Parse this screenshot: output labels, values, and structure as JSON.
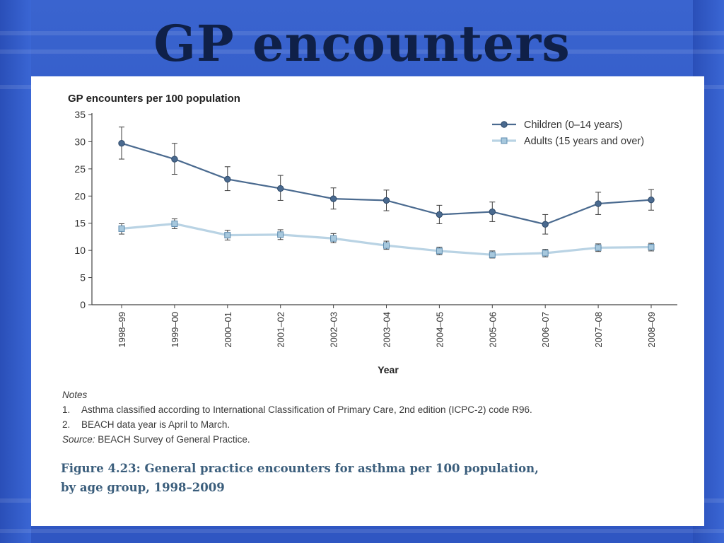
{
  "slide": {
    "title": "GP encounters"
  },
  "chart_data": {
    "type": "line",
    "title": "GP encounters per 100 population",
    "xlabel": "Year",
    "ylabel": "",
    "ylim": [
      0,
      35
    ],
    "yticks": [
      0,
      5,
      10,
      15,
      20,
      25,
      30,
      35
    ],
    "categories": [
      "1998–99",
      "1999–00",
      "2000–01",
      "2001–02",
      "2002–03",
      "2003–04",
      "2004–05",
      "2005–06",
      "2006–07",
      "2007–08",
      "2008–09"
    ],
    "legend_position": "top-right",
    "grid": false,
    "series": [
      {
        "name": "Children (0–14 years)",
        "color": "#4a6a8f",
        "marker": "circle",
        "values": [
          29.7,
          26.8,
          23.1,
          21.4,
          19.5,
          19.2,
          16.6,
          17.1,
          14.8,
          18.6,
          19.3
        ],
        "error_low": [
          26.8,
          24.0,
          21.0,
          19.2,
          17.6,
          17.3,
          14.9,
          15.3,
          13.0,
          16.6,
          17.4
        ],
        "error_high": [
          32.7,
          29.7,
          25.4,
          23.8,
          21.5,
          21.1,
          18.3,
          18.9,
          16.6,
          20.7,
          21.2
        ]
      },
      {
        "name": "Adults (15 years and over)",
        "color": "#b9d3e4",
        "marker": "square",
        "marker_fill": "#a7c8dd",
        "values": [
          14.0,
          14.9,
          12.8,
          12.9,
          12.2,
          10.9,
          9.9,
          9.2,
          9.5,
          10.5,
          10.6
        ],
        "error_low": [
          13.0,
          14.0,
          11.9,
          12.0,
          11.4,
          10.2,
          9.2,
          8.6,
          8.8,
          9.8,
          9.9
        ],
        "error_high": [
          14.9,
          15.8,
          13.7,
          13.8,
          13.1,
          11.7,
          10.6,
          9.9,
          10.2,
          11.2,
          11.3
        ]
      }
    ]
  },
  "notes": {
    "heading": "Notes",
    "items": [
      {
        "num": "1.",
        "text": "Asthma classified according to International Classification of Primary Care, 2nd edition (ICPC-2) code R96."
      },
      {
        "num": "2.",
        "text": "BEACH data year is April to March."
      }
    ],
    "source_label": "Source:",
    "source_text": " BEACH Survey of General Practice."
  },
  "caption": {
    "line1": "Figure 4.23: General practice encounters for asthma per 100 population,",
    "line2": "by age group, 1998–2009"
  }
}
